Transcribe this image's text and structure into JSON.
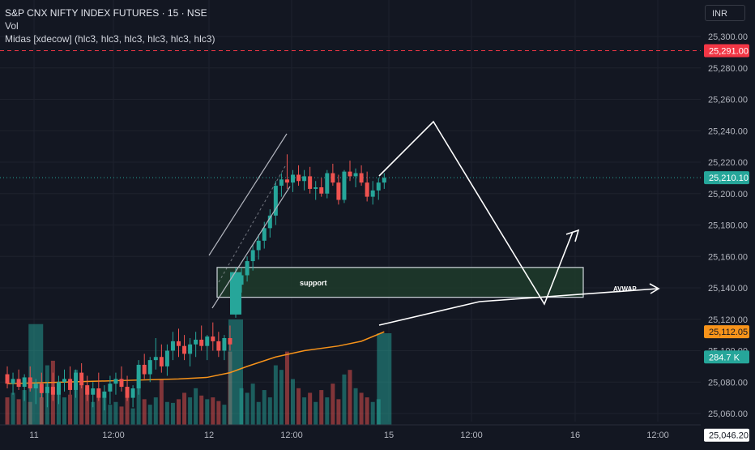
{
  "header": {
    "title": "S&P CNX NIFTY INDEX FUTURES · 15 · NSE",
    "indicator_vol": "Vol",
    "indicator_midas": "Midas [xdecow] (hlc3, hlc3, hlc3, hlc3, hlc3, hlc3)",
    "currency": "INR"
  },
  "colors": {
    "background": "#131722",
    "up": "#26a69a",
    "down": "#ef5350",
    "midas_line": "#f7931a",
    "price_line": "#26a69a",
    "alert_line": "#f23645",
    "zone_fill": "#1f3b2a",
    "drawing": "#ffffff"
  },
  "chart_data": {
    "type": "candlestick",
    "ylim": [
      25043,
      25316
    ],
    "price_axis_ticks": [
      "25,300.00",
      "25,280.00",
      "25,260.00",
      "25,240.00",
      "25,220.00",
      "25,200.00",
      "25,180.00",
      "25,160.00",
      "25,140.00",
      "25,120.00",
      "25,100.00",
      "25,080.00",
      "25,060.00"
    ],
    "time_axis_labels": [
      "11",
      "12:00",
      "12",
      "12:00",
      "15",
      "12:00",
      "16",
      "12:00"
    ],
    "price_badges": {
      "alert": "25,291.00",
      "last_price": "25,210.10",
      "midas": "25,112.05",
      "volume": "284.7 K",
      "low": "25,046.20"
    },
    "candles": [
      {
        "o": 25085,
        "h": 25090,
        "l": 25076,
        "c": 25079,
        "v": 30
      },
      {
        "o": 25079,
        "h": 25086,
        "l": 25072,
        "c": 25082,
        "v": 35
      },
      {
        "o": 25082,
        "h": 25088,
        "l": 25075,
        "c": 25077,
        "v": 28
      },
      {
        "o": 25077,
        "h": 25085,
        "l": 25068,
        "c": 25083,
        "v": 38
      },
      {
        "o": 25083,
        "h": 25090,
        "l": 25074,
        "c": 25076,
        "v": 25
      },
      {
        "o": 25076,
        "h": 25082,
        "l": 25066,
        "c": 25079,
        "v": 110
      },
      {
        "o": 25079,
        "h": 25086,
        "l": 25070,
        "c": 25073,
        "v": 30
      },
      {
        "o": 25073,
        "h": 25080,
        "l": 25064,
        "c": 25077,
        "v": 65
      },
      {
        "o": 25077,
        "h": 25086,
        "l": 25068,
        "c": 25072,
        "v": 70
      },
      {
        "o": 25072,
        "h": 25084,
        "l": 25066,
        "c": 25080,
        "v": 40
      },
      {
        "o": 25080,
        "h": 25088,
        "l": 25074,
        "c": 25082,
        "v": 30
      },
      {
        "o": 25082,
        "h": 25090,
        "l": 25072,
        "c": 25075,
        "v": 33
      },
      {
        "o": 25075,
        "h": 25088,
        "l": 25070,
        "c": 25086,
        "v": 60
      },
      {
        "o": 25086,
        "h": 25092,
        "l": 25076,
        "c": 25078,
        "v": 45
      },
      {
        "o": 25078,
        "h": 25084,
        "l": 25068,
        "c": 25072,
        "v": 40
      },
      {
        "o": 25072,
        "h": 25080,
        "l": 25064,
        "c": 25076,
        "v": 25
      },
      {
        "o": 25076,
        "h": 25086,
        "l": 25068,
        "c": 25070,
        "v": 35
      },
      {
        "o": 25070,
        "h": 25078,
        "l": 25062,
        "c": 25074,
        "v": 30
      },
      {
        "o": 25074,
        "h": 25084,
        "l": 25066,
        "c": 25079,
        "v": 22
      },
      {
        "o": 25079,
        "h": 25086,
        "l": 25072,
        "c": 25082,
        "v": 25
      },
      {
        "o": 25082,
        "h": 25090,
        "l": 25074,
        "c": 25077,
        "v": 20
      },
      {
        "o": 25077,
        "h": 25084,
        "l": 25068,
        "c": 25070,
        "v": 30
      },
      {
        "o": 25070,
        "h": 25078,
        "l": 25064,
        "c": 25076,
        "v": 18
      },
      {
        "o": 25076,
        "h": 25094,
        "l": 25072,
        "c": 25091,
        "v": 55
      },
      {
        "o": 25091,
        "h": 25098,
        "l": 25082,
        "c": 25085,
        "v": 28
      },
      {
        "o": 25085,
        "h": 25096,
        "l": 25080,
        "c": 25094,
        "v": 22
      },
      {
        "o": 25094,
        "h": 25108,
        "l": 25088,
        "c": 25096,
        "v": 30
      },
      {
        "o": 25096,
        "h": 25104,
        "l": 25086,
        "c": 25090,
        "v": 50
      },
      {
        "o": 25090,
        "h": 25104,
        "l": 25084,
        "c": 25100,
        "v": 25
      },
      {
        "o": 25100,
        "h": 25112,
        "l": 25094,
        "c": 25106,
        "v": 24
      },
      {
        "o": 25106,
        "h": 25114,
        "l": 25096,
        "c": 25103,
        "v": 28
      },
      {
        "o": 25103,
        "h": 25110,
        "l": 25094,
        "c": 25098,
        "v": 35
      },
      {
        "o": 25098,
        "h": 25108,
        "l": 25090,
        "c": 25104,
        "v": 30
      },
      {
        "o": 25104,
        "h": 25112,
        "l": 25096,
        "c": 25107,
        "v": 40
      },
      {
        "o": 25107,
        "h": 25116,
        "l": 25100,
        "c": 25103,
        "v": 32
      },
      {
        "o": 25103,
        "h": 25110,
        "l": 25094,
        "c": 25109,
        "v": 28
      },
      {
        "o": 25109,
        "h": 25118,
        "l": 25100,
        "c": 25106,
        "v": 30
      },
      {
        "o": 25106,
        "h": 25112,
        "l": 25096,
        "c": 25100,
        "v": 26
      },
      {
        "o": 25100,
        "h": 25110,
        "l": 25094,
        "c": 25108,
        "v": 22
      },
      {
        "o": 25108,
        "h": 25116,
        "l": 25100,
        "c": 25104,
        "v": 80
      },
      {
        "o": 25123,
        "h": 25153,
        "l": 25121,
        "c": 25150,
        "v": 115
      },
      {
        "o": 25142,
        "h": 25153,
        "l": 25137,
        "c": 25148,
        "v": 40
      },
      {
        "o": 25148,
        "h": 25160,
        "l": 25144,
        "c": 25157,
        "v": 35
      },
      {
        "o": 25157,
        "h": 25168,
        "l": 25151,
        "c": 25164,
        "v": 45
      },
      {
        "o": 25164,
        "h": 25174,
        "l": 25158,
        "c": 25170,
        "v": 25
      },
      {
        "o": 25170,
        "h": 25182,
        "l": 25165,
        "c": 25178,
        "v": 38
      },
      {
        "o": 25178,
        "h": 25190,
        "l": 25172,
        "c": 25186,
        "v": 30
      },
      {
        "o": 25186,
        "h": 25208,
        "l": 25180,
        "c": 25205,
        "v": 65
      },
      {
        "o": 25205,
        "h": 25213,
        "l": 25198,
        "c": 25209,
        "v": 60
      },
      {
        "o": 25209,
        "h": 25225,
        "l": 25203,
        "c": 25207,
        "v": 80
      },
      {
        "o": 25207,
        "h": 25215,
        "l": 25201,
        "c": 25212,
        "v": 50
      },
      {
        "o": 25212,
        "h": 25218,
        "l": 25205,
        "c": 25208,
        "v": 40
      },
      {
        "o": 25208,
        "h": 25215,
        "l": 25202,
        "c": 25211,
        "v": 30
      },
      {
        "o": 25211,
        "h": 25217,
        "l": 25200,
        "c": 25203,
        "v": 35
      },
      {
        "o": 25203,
        "h": 25208,
        "l": 25196,
        "c": 25204,
        "v": 25
      },
      {
        "o": 25204,
        "h": 25210,
        "l": 25198,
        "c": 25200,
        "v": 38
      },
      {
        "o": 25200,
        "h": 25215,
        "l": 25197,
        "c": 25213,
        "v": 30
      },
      {
        "o": 25213,
        "h": 25219,
        "l": 25205,
        "c": 25207,
        "v": 45
      },
      {
        "o": 25207,
        "h": 25212,
        "l": 25193,
        "c": 25196,
        "v": 28
      },
      {
        "o": 25196,
        "h": 25215,
        "l": 25194,
        "c": 25214,
        "v": 55
      },
      {
        "o": 25214,
        "h": 25221,
        "l": 25208,
        "c": 25211,
        "v": 60
      },
      {
        "o": 25211,
        "h": 25216,
        "l": 25204,
        "c": 25213,
        "v": 40
      },
      {
        "o": 25213,
        "h": 25218,
        "l": 25205,
        "c": 25207,
        "v": 35
      },
      {
        "o": 25207,
        "h": 25214,
        "l": 25195,
        "c": 25198,
        "v": 30
      },
      {
        "o": 25198,
        "h": 25208,
        "l": 25193,
        "c": 25202,
        "v": 25
      },
      {
        "o": 25202,
        "h": 25210,
        "l": 25196,
        "c": 25207,
        "v": 28
      },
      {
        "o": 25207,
        "h": 25213,
        "l": 25203,
        "c": 25210,
        "v": 100
      }
    ],
    "midas_line": {
      "name": "Midas",
      "points": [
        [
          0,
          25079
        ],
        [
          10,
          25080
        ],
        [
          20,
          25081
        ],
        [
          30,
          25082
        ],
        [
          35,
          25083
        ],
        [
          39,
          25086
        ],
        [
          42,
          25090
        ],
        [
          47,
          25096
        ],
        [
          52,
          25100
        ],
        [
          58,
          25103
        ],
        [
          62,
          25106
        ],
        [
          66,
          25112
        ]
      ]
    }
  },
  "drawings": {
    "support_label": "support",
    "avwap_label": "AVWAP"
  }
}
